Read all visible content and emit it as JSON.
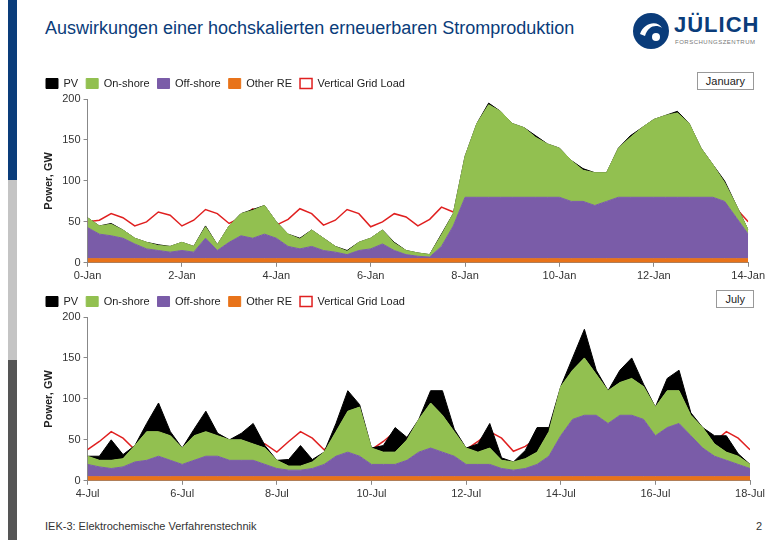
{
  "header": {
    "title": "Auswirkungen einer hochskalierten erneuerbaren Stromproduktion",
    "logo": {
      "name": "JÜLICH",
      "subtitle": "FORSCHUNGSZENTRUM"
    }
  },
  "footer": {
    "text": "IEK-3: Elektrochemische Verfahrenstechnik",
    "page": 2
  },
  "chart_data": [
    {
      "type": "area",
      "annotation": "January",
      "y_label": "Power, GW",
      "stacked": true,
      "grid": false,
      "legend": "upper left",
      "x": [
        0,
        0.25,
        0.5,
        0.75,
        1,
        1.25,
        1.5,
        1.75,
        2,
        2.25,
        2.5,
        2.75,
        3,
        3.25,
        3.5,
        3.75,
        4,
        4.25,
        4.5,
        4.75,
        5,
        5.25,
        5.5,
        5.75,
        6,
        6.25,
        6.5,
        6.75,
        7,
        7.25,
        7.5,
        7.75,
        8,
        8.25,
        8.5,
        8.75,
        9,
        9.25,
        9.5,
        9.75,
        10,
        10.25,
        10.5,
        10.75,
        11,
        11.25,
        11.5,
        11.75,
        12,
        12.25,
        12.5,
        12.75,
        13,
        13.25,
        13.5,
        13.75,
        14
      ],
      "xlim": [
        0,
        14
      ],
      "xticks": [
        {
          "value": 0,
          "label": "0-Jan"
        },
        {
          "value": 2,
          "label": "2-Jan"
        },
        {
          "value": 4,
          "label": "4-Jan"
        },
        {
          "value": 6,
          "label": "6-Jan"
        },
        {
          "value": 8,
          "label": "8-Jan"
        },
        {
          "value": 10,
          "label": "10-Jan"
        },
        {
          "value": 12,
          "label": "12-Jan"
        },
        {
          "value": 14,
          "label": "14-Jan"
        }
      ],
      "ylim": [
        0,
        200
      ],
      "yticks": [
        0,
        50,
        100,
        150,
        200
      ],
      "series": [
        {
          "name": "PV",
          "color": "#000000",
          "values": [
            0,
            0,
            1,
            0,
            0,
            0,
            1,
            0,
            0,
            0,
            1,
            0,
            0,
            0,
            1,
            0,
            0,
            0,
            1,
            0,
            0,
            0,
            1,
            0,
            0,
            0,
            1,
            0,
            0,
            0,
            1,
            0,
            0,
            0,
            2,
            0,
            0,
            0,
            2,
            0,
            0,
            0,
            2,
            0,
            0,
            0,
            2,
            0,
            0,
            0,
            2,
            0,
            0,
            0,
            2,
            0,
            0
          ]
        },
        {
          "name": "On-shore",
          "color": "#92c050",
          "values": [
            12,
            10,
            14,
            10,
            7,
            8,
            6,
            7,
            10,
            7,
            14,
            7,
            20,
            27,
            34,
            35,
            20,
            15,
            12,
            20,
            15,
            7,
            4,
            10,
            13,
            17,
            9,
            5,
            4,
            3,
            14,
            15,
            50,
            90,
            113,
            105,
            90,
            85,
            73,
            65,
            60,
            50,
            38,
            40,
            35,
            60,
            73,
            85,
            95,
            100,
            103,
            90,
            60,
            40,
            23,
            15,
            5
          ]
        },
        {
          "name": "Off-shore",
          "color": "#7a5ca8",
          "values": [
            38,
            30,
            28,
            25,
            18,
            12,
            10,
            8,
            10,
            8,
            25,
            10,
            20,
            28,
            25,
            30,
            25,
            15,
            12,
            15,
            10,
            8,
            5,
            10,
            12,
            18,
            10,
            5,
            3,
            2,
            15,
            40,
            75,
            75,
            75,
            75,
            75,
            75,
            75,
            75,
            75,
            70,
            70,
            65,
            70,
            75,
            75,
            75,
            75,
            75,
            75,
            75,
            75,
            75,
            70,
            50,
            30
          ]
        },
        {
          "name": "Other RE",
          "color": "#e8731a",
          "values": [
            5,
            5,
            5,
            5,
            5,
            5,
            5,
            5,
            5,
            5,
            5,
            5,
            5,
            5,
            5,
            5,
            5,
            5,
            5,
            5,
            5,
            5,
            5,
            5,
            5,
            5,
            5,
            5,
            5,
            5,
            5,
            5,
            5,
            5,
            5,
            5,
            5,
            5,
            5,
            5,
            5,
            5,
            5,
            5,
            5,
            5,
            5,
            5,
            5,
            5,
            5,
            5,
            5,
            5,
            5,
            5,
            5
          ]
        },
        {
          "name": "Vertical Grid Load",
          "color": "#e02020",
          "type": "line",
          "marker": "square",
          "values": [
            50,
            52,
            60,
            55,
            45,
            50,
            62,
            58,
            45,
            52,
            65,
            60,
            48,
            55,
            66,
            60,
            46,
            53,
            66,
            60,
            46,
            52,
            65,
            60,
            44,
            50,
            60,
            56,
            45,
            53,
            68,
            62,
            50,
            58,
            72,
            65,
            52,
            58,
            72,
            66,
            52,
            58,
            72,
            66,
            52,
            58,
            73,
            66,
            54,
            60,
            75,
            68,
            52,
            58,
            72,
            66,
            50
          ]
        }
      ]
    },
    {
      "type": "area",
      "annotation": "July",
      "y_label": "Power, GW",
      "stacked": true,
      "grid": false,
      "legend": "upper left",
      "x": [
        4,
        4.25,
        4.5,
        4.75,
        5,
        5.25,
        5.5,
        5.75,
        6,
        6.25,
        6.5,
        6.75,
        7,
        7.25,
        7.5,
        7.75,
        8,
        8.25,
        8.5,
        8.75,
        9,
        9.25,
        9.5,
        9.75,
        10,
        10.25,
        10.5,
        10.75,
        11,
        11.25,
        11.5,
        11.75,
        12,
        12.25,
        12.5,
        12.75,
        13,
        13.25,
        13.5,
        13.75,
        14,
        14.25,
        14.5,
        14.75,
        15,
        15.25,
        15.5,
        15.75,
        16,
        16.25,
        16.5,
        16.75,
        17,
        17.25,
        17.5,
        17.75,
        18
      ],
      "xlim": [
        4,
        18
      ],
      "xticks": [
        {
          "value": 4,
          "label": "4-Jul"
        },
        {
          "value": 6,
          "label": "6-Jul"
        },
        {
          "value": 8,
          "label": "8-Jul"
        },
        {
          "value": 10,
          "label": "10-Jul"
        },
        {
          "value": 12,
          "label": "12-Jul"
        },
        {
          "value": 14,
          "label": "14-Jul"
        },
        {
          "value": 16,
          "label": "16-Jul"
        },
        {
          "value": 18,
          "label": "18-Jul"
        }
      ],
      "ylim": [
        0,
        200
      ],
      "yticks": [
        0,
        50,
        100,
        150,
        200
      ],
      "series": [
        {
          "name": "PV",
          "color": "#000000",
          "values": [
            0,
            5,
            25,
            5,
            0,
            10,
            35,
            5,
            0,
            8,
            25,
            3,
            0,
            8,
            25,
            3,
            0,
            8,
            25,
            3,
            0,
            10,
            25,
            3,
            0,
            8,
            30,
            3,
            0,
            15,
            30,
            3,
            0,
            10,
            30,
            3,
            0,
            10,
            30,
            5,
            0,
            15,
            35,
            5,
            0,
            15,
            25,
            3,
            0,
            15,
            25,
            3,
            0,
            10,
            20,
            3,
            0
          ]
        },
        {
          "name": "On-shore",
          "color": "#92c050",
          "values": [
            10,
            8,
            10,
            10,
            20,
            35,
            30,
            30,
            20,
            30,
            30,
            25,
            25,
            25,
            20,
            20,
            10,
            5,
            5,
            8,
            15,
            30,
            50,
            60,
            20,
            15,
            15,
            25,
            40,
            55,
            45,
            30,
            20,
            15,
            20,
            10,
            10,
            12,
            15,
            30,
            60,
            60,
            70,
            50,
            40,
            40,
            45,
            40,
            35,
            45,
            40,
            25,
            25,
            15,
            10,
            10,
            5
          ]
        },
        {
          "name": "Off-shore",
          "color": "#7a5ca8",
          "values": [
            15,
            12,
            10,
            12,
            18,
            20,
            25,
            20,
            15,
            20,
            25,
            25,
            20,
            20,
            20,
            15,
            10,
            8,
            8,
            10,
            15,
            25,
            30,
            25,
            15,
            15,
            15,
            20,
            30,
            35,
            30,
            25,
            15,
            15,
            15,
            10,
            8,
            10,
            15,
            25,
            50,
            70,
            75,
            75,
            65,
            75,
            75,
            70,
            50,
            60,
            65,
            50,
            35,
            25,
            20,
            15,
            10
          ]
        },
        {
          "name": "Other RE",
          "color": "#e8731a",
          "values": [
            5,
            5,
            5,
            5,
            5,
            5,
            5,
            5,
            5,
            5,
            5,
            5,
            5,
            5,
            5,
            5,
            5,
            5,
            5,
            5,
            5,
            5,
            5,
            5,
            5,
            5,
            5,
            5,
            5,
            5,
            5,
            5,
            5,
            5,
            5,
            5,
            5,
            5,
            5,
            5,
            5,
            5,
            5,
            5,
            5,
            5,
            5,
            5,
            5,
            5,
            5,
            5,
            5,
            5,
            5,
            5,
            5
          ]
        },
        {
          "name": "Vertical Grid Load",
          "color": "#e02020",
          "type": "line",
          "marker": "square",
          "values": [
            38,
            48,
            60,
            52,
            38,
            48,
            60,
            52,
            36,
            42,
            52,
            48,
            35,
            40,
            48,
            45,
            35,
            48,
            60,
            52,
            38,
            48,
            60,
            52,
            38,
            48,
            60,
            52,
            38,
            48,
            60,
            52,
            38,
            48,
            60,
            52,
            36,
            42,
            52,
            48,
            35,
            40,
            48,
            45,
            38,
            48,
            60,
            52,
            38,
            48,
            60,
            52,
            38,
            48,
            60,
            52,
            38
          ]
        }
      ]
    }
  ]
}
